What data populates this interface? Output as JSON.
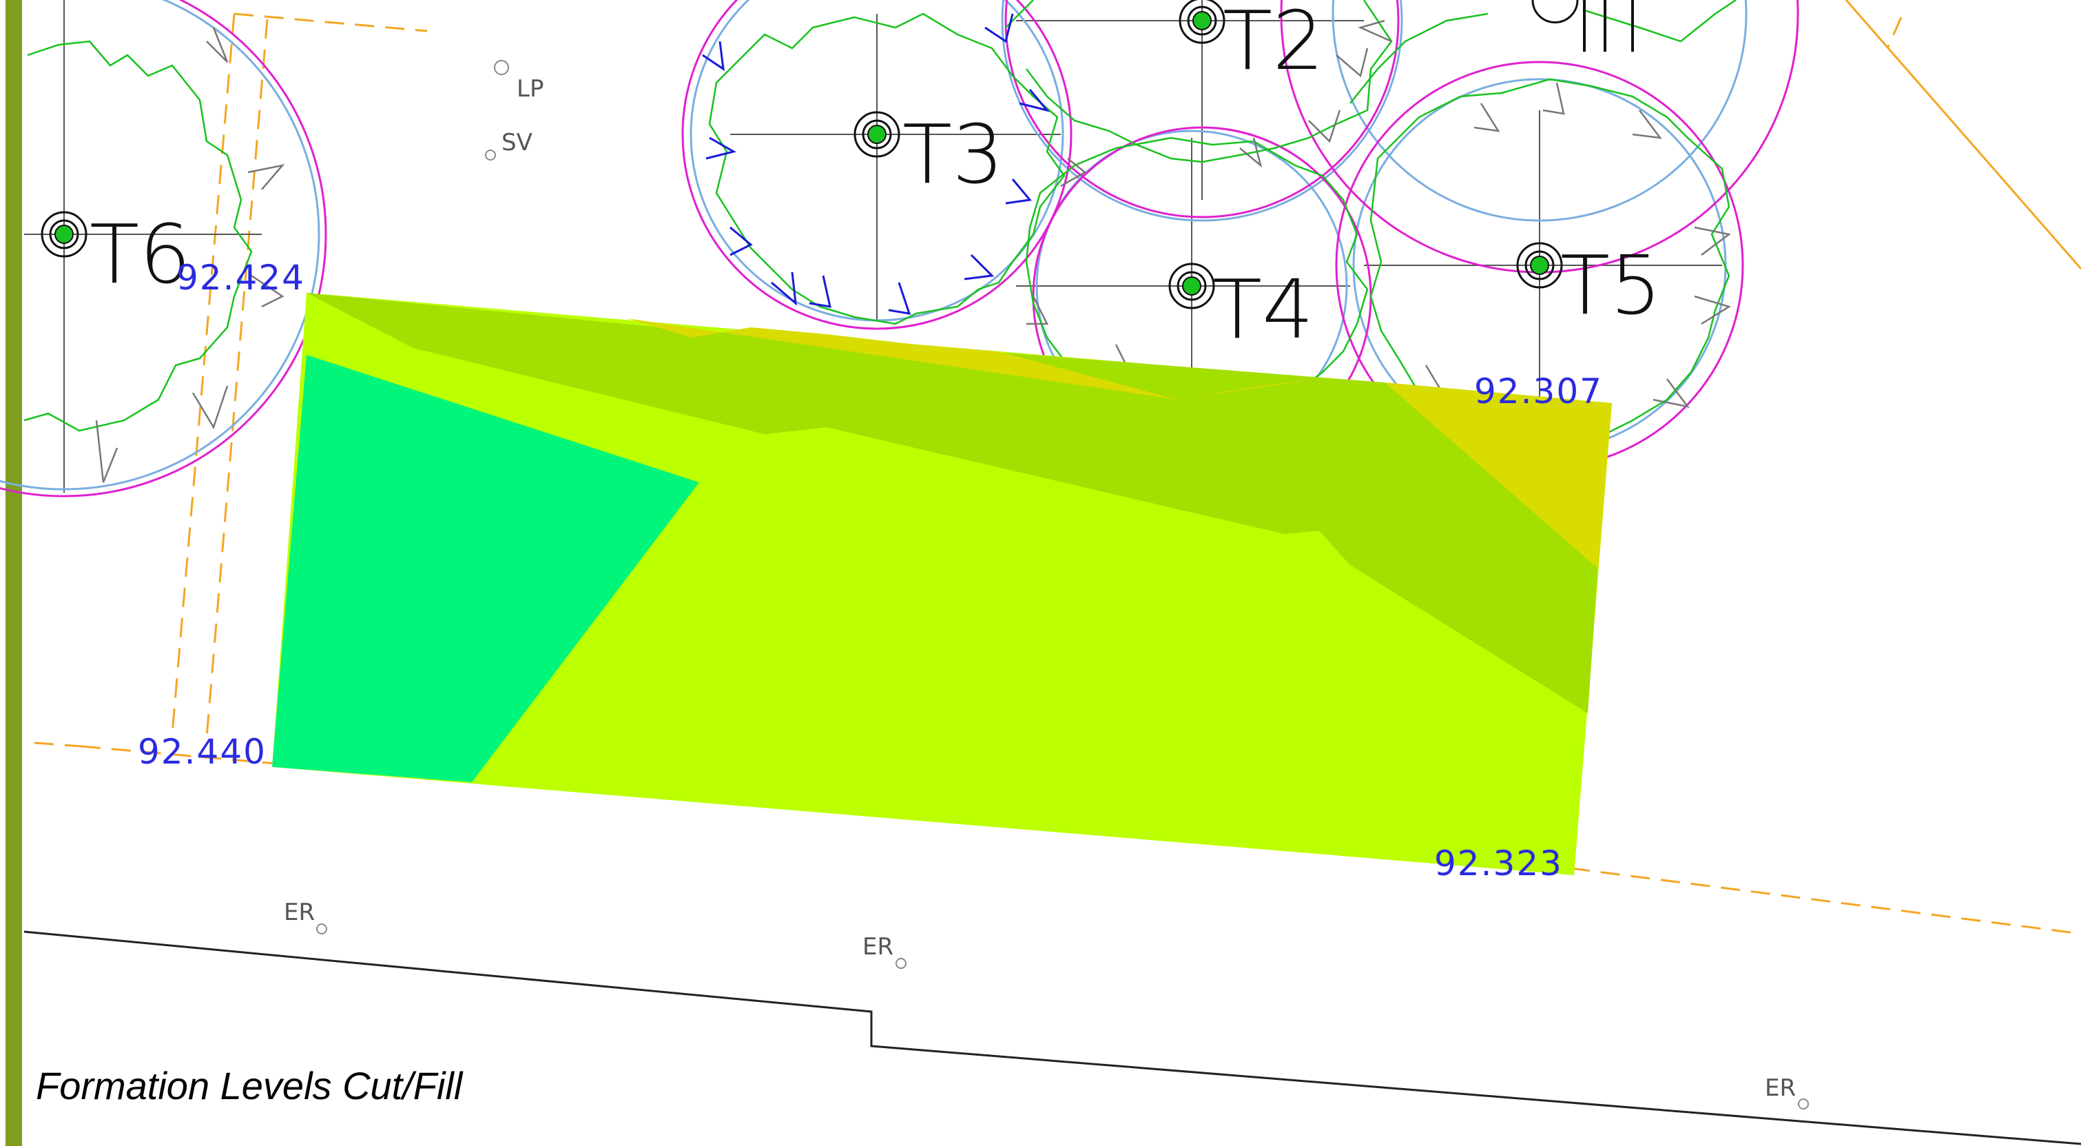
{
  "title": "Formation Levels Cut/Fill",
  "level_labels": {
    "top_left": "92.424",
    "top_right": "92.307",
    "bottom_left": "92.440",
    "bottom_right": "92.323"
  },
  "trees": {
    "t2": "T2",
    "t3": "T3",
    "t4": "T4",
    "t5": "T5",
    "t6": "T6"
  },
  "site_labels": {
    "lp": "LP",
    "sv": "SV",
    "er": "ER"
  },
  "colors": {
    "fill_low": "#00f57a",
    "fill_mid": "#bbff00",
    "fill_high": "#a3df00",
    "fill_top": "#d8dc00",
    "border_bar": "#7f9d1f",
    "canopy": "#e020d0",
    "root_zone": "#7aaee0",
    "tree_outline": "#19c21e",
    "level_text": "#2a2ae0",
    "boundary": "#f5a623"
  }
}
